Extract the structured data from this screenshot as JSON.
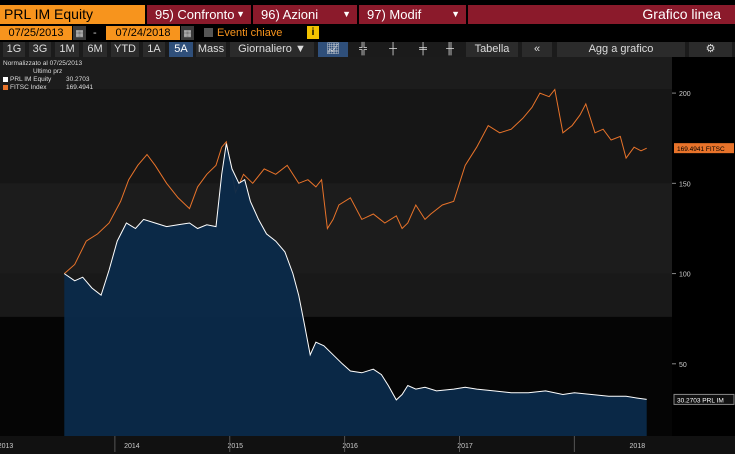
{
  "header": {
    "ticker": "PRL IM Equity",
    "buttons": [
      {
        "label": "95) Confronto"
      },
      {
        "label": "96) Azioni"
      },
      {
        "label": "97) Modif"
      }
    ],
    "view_title": "Grafico linea"
  },
  "dates": {
    "start": "07/25/2013",
    "separator": "-",
    "end": "07/24/2018",
    "eventi_label": "Eventi chiave",
    "info_label": "i"
  },
  "toolbar": {
    "periods": [
      "1G",
      "3G",
      "1M",
      "6M",
      "YTD",
      "1A",
      "5A",
      "Mass"
    ],
    "selected_period": "5A",
    "frequency": "Giornaliero ▼",
    "tabella": "Tabella",
    "collapse": "«",
    "add_chart": "Agg a grafico",
    "settings": "⚙"
  },
  "legend": {
    "normalized": "Normalizzato al 07/25/2013",
    "header": "Ultimo prz",
    "items": [
      {
        "name": "PRL IM Equity",
        "value": "30.2703",
        "color": "#ffffff"
      },
      {
        "name": "FITSC Index",
        "value": "169.4941",
        "color": "#e8732a"
      }
    ]
  },
  "chart_data": {
    "type": "line",
    "y_ticks": [
      50,
      100,
      150,
      200
    ],
    "ylim": [
      10,
      220
    ],
    "x_labels": [
      "2013",
      "2014",
      "2015",
      "2016",
      "2017",
      "2018"
    ],
    "last_labels": [
      {
        "text": "169.4941 FITSC",
        "value": 169.4941,
        "color": "#e8732a"
      },
      {
        "text": "30.2703 PRL IM",
        "value": 30.2703,
        "color": "#ffffff"
      }
    ],
    "series": [
      {
        "name": "FITSC Index",
        "color": "#e8732a",
        "points": [
          [
            2013.56,
            100
          ],
          [
            2013.65,
            105
          ],
          [
            2013.75,
            118
          ],
          [
            2013.85,
            122
          ],
          [
            2013.95,
            128
          ],
          [
            2014.05,
            140
          ],
          [
            2014.12,
            152
          ],
          [
            2014.2,
            160
          ],
          [
            2014.28,
            166
          ],
          [
            2014.35,
            160
          ],
          [
            2014.45,
            150
          ],
          [
            2014.55,
            142
          ],
          [
            2014.65,
            136
          ],
          [
            2014.72,
            148
          ],
          [
            2014.8,
            155
          ],
          [
            2014.88,
            160
          ],
          [
            2014.93,
            170
          ],
          [
            2014.97,
            173
          ],
          [
            2015.05,
            145
          ],
          [
            2015.12,
            155
          ],
          [
            2015.2,
            150
          ],
          [
            2015.3,
            158
          ],
          [
            2015.4,
            155
          ],
          [
            2015.5,
            160
          ],
          [
            2015.6,
            150
          ],
          [
            2015.68,
            152
          ],
          [
            2015.75,
            148
          ],
          [
            2015.8,
            152
          ],
          [
            2015.85,
            125
          ],
          [
            2015.9,
            130
          ],
          [
            2015.95,
            138
          ],
          [
            2016.05,
            142
          ],
          [
            2016.15,
            130
          ],
          [
            2016.25,
            133
          ],
          [
            2016.35,
            128
          ],
          [
            2016.45,
            132
          ],
          [
            2016.5,
            125
          ],
          [
            2016.55,
            128
          ],
          [
            2016.62,
            138
          ],
          [
            2016.7,
            130
          ],
          [
            2016.75,
            133
          ],
          [
            2016.85,
            138
          ],
          [
            2016.95,
            140
          ],
          [
            2017.05,
            160
          ],
          [
            2017.15,
            170
          ],
          [
            2017.25,
            182
          ],
          [
            2017.35,
            178
          ],
          [
            2017.45,
            180
          ],
          [
            2017.55,
            186
          ],
          [
            2017.63,
            192
          ],
          [
            2017.7,
            200
          ],
          [
            2017.78,
            198
          ],
          [
            2017.83,
            202
          ],
          [
            2017.9,
            178
          ],
          [
            2017.98,
            182
          ],
          [
            2018.05,
            188
          ],
          [
            2018.1,
            194
          ],
          [
            2018.18,
            178
          ],
          [
            2018.25,
            180
          ],
          [
            2018.32,
            174
          ],
          [
            2018.4,
            176
          ],
          [
            2018.45,
            164
          ],
          [
            2018.52,
            170
          ],
          [
            2018.58,
            168
          ],
          [
            2018.63,
            169.49
          ]
        ]
      },
      {
        "name": "PRL IM Equity",
        "color": "#ffffff",
        "points": [
          [
            2013.56,
            100
          ],
          [
            2013.65,
            96
          ],
          [
            2013.72,
            98
          ],
          [
            2013.8,
            92
          ],
          [
            2013.88,
            88
          ],
          [
            2013.95,
            102
          ],
          [
            2014.02,
            118
          ],
          [
            2014.1,
            128
          ],
          [
            2014.18,
            125
          ],
          [
            2014.25,
            130
          ],
          [
            2014.35,
            128
          ],
          [
            2014.45,
            126
          ],
          [
            2014.55,
            127
          ],
          [
            2014.65,
            128
          ],
          [
            2014.72,
            125
          ],
          [
            2014.8,
            127
          ],
          [
            2014.88,
            126
          ],
          [
            2014.93,
            155
          ],
          [
            2014.97,
            172
          ],
          [
            2015.02,
            158
          ],
          [
            2015.08,
            150
          ],
          [
            2015.13,
            152
          ],
          [
            2015.18,
            140
          ],
          [
            2015.25,
            130
          ],
          [
            2015.32,
            122
          ],
          [
            2015.4,
            118
          ],
          [
            2015.48,
            112
          ],
          [
            2015.55,
            100
          ],
          [
            2015.6,
            88
          ],
          [
            2015.65,
            72
          ],
          [
            2015.7,
            55
          ],
          [
            2015.75,
            62
          ],
          [
            2015.82,
            60
          ],
          [
            2015.9,
            55
          ],
          [
            2015.98,
            50
          ],
          [
            2016.05,
            46
          ],
          [
            2016.15,
            45
          ],
          [
            2016.25,
            47
          ],
          [
            2016.32,
            44
          ],
          [
            2016.38,
            38
          ],
          [
            2016.45,
            30
          ],
          [
            2016.5,
            33
          ],
          [
            2016.55,
            38
          ],
          [
            2016.62,
            36
          ],
          [
            2016.7,
            37
          ],
          [
            2016.8,
            35
          ],
          [
            2016.95,
            36
          ],
          [
            2017.05,
            37
          ],
          [
            2017.15,
            36
          ],
          [
            2017.3,
            35
          ],
          [
            2017.45,
            34
          ],
          [
            2017.6,
            34
          ],
          [
            2017.75,
            35
          ],
          [
            2017.9,
            33
          ],
          [
            2018.0,
            34
          ],
          [
            2018.15,
            33
          ],
          [
            2018.3,
            32
          ],
          [
            2018.45,
            32
          ],
          [
            2018.55,
            31
          ],
          [
            2018.63,
            30.27
          ]
        ]
      }
    ]
  }
}
